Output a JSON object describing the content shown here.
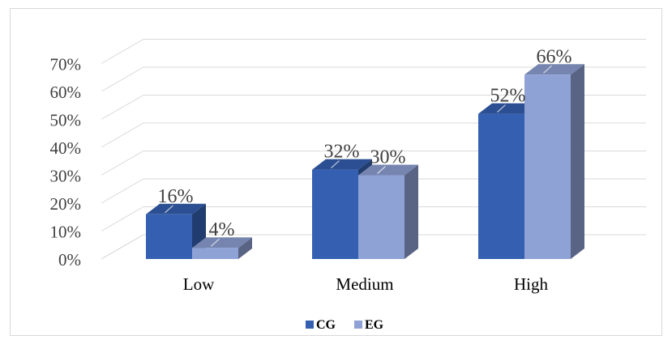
{
  "chart_data": {
    "type": "bar",
    "style": "3d-clustered-column",
    "categories": [
      "Low",
      "Medium",
      "High"
    ],
    "series": [
      {
        "name": "CG",
        "values": [
          16,
          32,
          52
        ],
        "color": "#3560b2"
      },
      {
        "name": "EG",
        "values": [
          4,
          30,
          66
        ],
        "color": "#8fa2d6"
      }
    ],
    "data_labels": [
      [
        "16%",
        "32%",
        "52%"
      ],
      [
        "4%",
        "30%",
        "66%"
      ]
    ],
    "yticks": [
      "0%",
      "10%",
      "20%",
      "30%",
      "40%",
      "50%",
      "60%",
      "70%"
    ],
    "ylim": [
      0,
      70
    ],
    "grid": true,
    "legend": "bottom",
    "title": "",
    "xlabel": "",
    "ylabel": ""
  }
}
